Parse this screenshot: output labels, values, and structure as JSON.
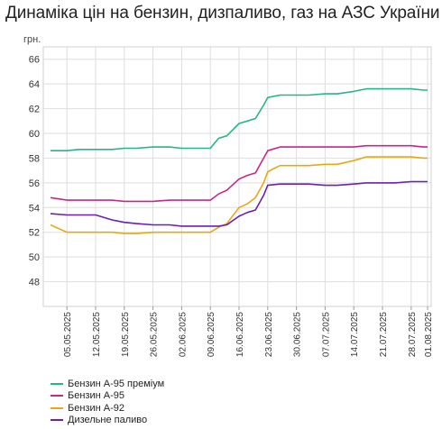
{
  "chart_data": {
    "type": "line",
    "title": "Динаміка цін на бензин, дизпаливо, газ на АЗС України",
    "ylabel": "грн.",
    "ylim": [
      46,
      67
    ],
    "yticks": [
      48,
      50,
      52,
      54,
      56,
      58,
      60,
      62,
      64,
      66
    ],
    "grid": true,
    "legend_position": "bottom-left",
    "x": [
      "2025-05-01",
      "2025-05-05",
      "2025-05-08",
      "2025-05-12",
      "2025-05-16",
      "2025-05-19",
      "2025-05-22",
      "2025-05-26",
      "2025-05-30",
      "2025-06-02",
      "2025-06-05",
      "2025-06-09",
      "2025-06-11",
      "2025-06-13",
      "2025-06-16",
      "2025-06-18",
      "2025-06-20",
      "2025-06-22",
      "2025-06-23",
      "2025-06-26",
      "2025-06-30",
      "2025-07-03",
      "2025-07-07",
      "2025-07-10",
      "2025-07-14",
      "2025-07-17",
      "2025-07-21",
      "2025-07-24",
      "2025-07-28",
      "2025-07-31",
      "2025-08-01"
    ],
    "xticks": [
      "05.05.2025",
      "12.05.2025",
      "19.05.2025",
      "26.05.2025",
      "02.06.2025",
      "09.06.2025",
      "16.06.2025",
      "23.06.2025",
      "30.06.2025",
      "07.07.2025",
      "14.07.2025",
      "21.07.2025",
      "28.07.2025",
      "01.08.2025"
    ],
    "xtick_dates": [
      "2025-05-05",
      "2025-05-12",
      "2025-05-19",
      "2025-05-26",
      "2025-06-02",
      "2025-06-09",
      "2025-06-16",
      "2025-06-23",
      "2025-06-30",
      "2025-07-07",
      "2025-07-14",
      "2025-07-21",
      "2025-07-28",
      "2025-08-01"
    ],
    "series": [
      {
        "name": "Бензин А-95 преміум",
        "color": "#26b58a",
        "values": [
          58.6,
          58.6,
          58.7,
          58.7,
          58.7,
          58.8,
          58.8,
          58.9,
          58.9,
          58.8,
          58.8,
          58.8,
          59.6,
          59.8,
          60.8,
          61.0,
          61.2,
          62.3,
          62.9,
          63.1,
          63.1,
          63.1,
          63.2,
          63.2,
          63.4,
          63.6,
          63.6,
          63.6,
          63.6,
          63.5,
          63.5
        ]
      },
      {
        "name": "Бензин А-95",
        "color": "#c8268a",
        "values": [
          54.8,
          54.6,
          54.6,
          54.6,
          54.6,
          54.5,
          54.5,
          54.5,
          54.6,
          54.6,
          54.6,
          54.6,
          55.1,
          55.4,
          56.3,
          56.6,
          56.8,
          58.0,
          58.6,
          58.9,
          58.9,
          58.9,
          58.9,
          58.9,
          58.9,
          59.0,
          59.0,
          59.0,
          59.0,
          58.9,
          58.9
        ]
      },
      {
        "name": "Бензин А-92",
        "color": "#e6a817",
        "values": [
          52.6,
          52.0,
          52.0,
          52.0,
          52.0,
          51.9,
          51.9,
          52.0,
          52.0,
          52.0,
          52.0,
          52.0,
          52.4,
          52.7,
          54.0,
          54.3,
          54.8,
          56.0,
          56.9,
          57.4,
          57.4,
          57.4,
          57.5,
          57.5,
          57.8,
          58.1,
          58.1,
          58.1,
          58.1,
          58.0,
          58.0
        ]
      },
      {
        "name": "Дизельне паливо",
        "color": "#6a1fb5",
        "values": [
          53.5,
          53.4,
          53.4,
          53.4,
          53.0,
          52.8,
          52.7,
          52.6,
          52.6,
          52.5,
          52.5,
          52.5,
          52.5,
          52.6,
          53.3,
          53.6,
          53.8,
          55.0,
          55.8,
          55.9,
          55.9,
          55.9,
          55.8,
          55.8,
          55.9,
          56.0,
          56.0,
          56.0,
          56.1,
          56.1,
          56.1
        ]
      }
    ]
  }
}
